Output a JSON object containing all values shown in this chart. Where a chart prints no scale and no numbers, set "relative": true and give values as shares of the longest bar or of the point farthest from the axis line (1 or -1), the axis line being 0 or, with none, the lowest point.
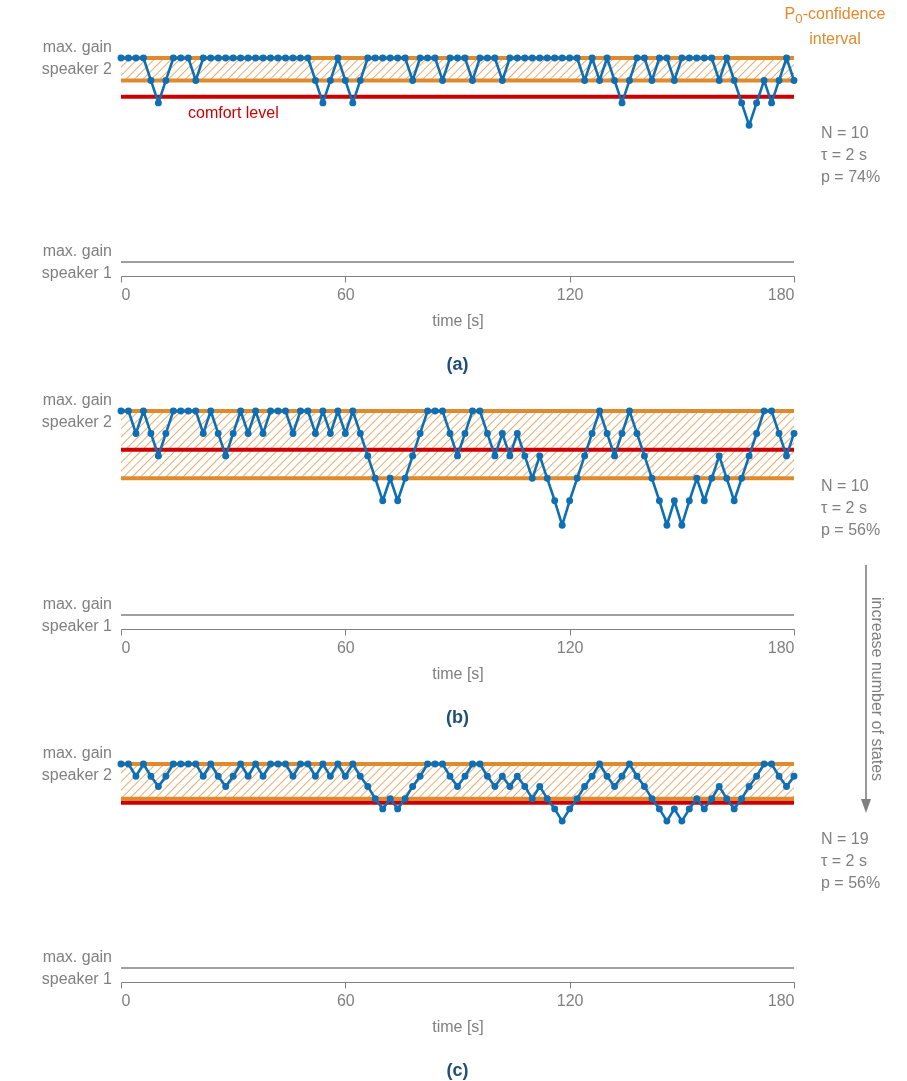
{
  "chart_data": [
    {
      "type": "line",
      "title": "(a)",
      "xlabel": "time [s]",
      "relative": true,
      "x": [
        0,
        2,
        4,
        6,
        8,
        10,
        12,
        14,
        16,
        18,
        20,
        22,
        24,
        26,
        28,
        30,
        32,
        34,
        36,
        38,
        40,
        42,
        44,
        46,
        48,
        50,
        52,
        54,
        56,
        58,
        60,
        62,
        64,
        66,
        68,
        70,
        72,
        74,
        76,
        78,
        80,
        82,
        84,
        86,
        88,
        90,
        92,
        94,
        96,
        98,
        100,
        102,
        104,
        106,
        108,
        110,
        112,
        114,
        116,
        118,
        120,
        122,
        124,
        126,
        128,
        130,
        132,
        134,
        136,
        138,
        140,
        142,
        144,
        146,
        148,
        150,
        152,
        154,
        156,
        158,
        160,
        162,
        164,
        166,
        168,
        170,
        172,
        174,
        176,
        178,
        180
      ],
      "series": [
        {
          "color": "#0f6fb5",
          "values": [
            1,
            1,
            1,
            1,
            0.89,
            0.78,
            0.89,
            1,
            1,
            1,
            0.89,
            1,
            1,
            1,
            1,
            1,
            1,
            1,
            1,
            1,
            1,
            1,
            1,
            1,
            1,
            1,
            0.89,
            0.78,
            0.89,
            1,
            0.89,
            0.78,
            0.89,
            1,
            1,
            1,
            1,
            1,
            1,
            0.89,
            1,
            1,
            1,
            0.89,
            1,
            1,
            1,
            0.89,
            1,
            1,
            1,
            0.89,
            1,
            1,
            1,
            1,
            1,
            1,
            1,
            1,
            1,
            1,
            0.89,
            1,
            0.89,
            1,
            0.89,
            0.78,
            0.89,
            1,
            1,
            0.89,
            1,
            1,
            0.89,
            1,
            1,
            1,
            1,
            1,
            0.89,
            1,
            0.89,
            0.78,
            0.67,
            0.78,
            0.89,
            0.78,
            0.89,
            1,
            0.89
          ]
        }
      ],
      "xlim": [
        0,
        180
      ],
      "xticks": [
        0,
        60,
        120,
        180
      ],
      "marker": "circle",
      "line_style": "solid",
      "ref_lines": [
        {
          "axis": "y",
          "value": 0,
          "color": "#808080"
        },
        {
          "axis": "y",
          "value": 0.89,
          "color": "#e08a2e"
        },
        {
          "axis": "y",
          "value": 1,
          "color": "#e08a2e"
        },
        {
          "axis": "y",
          "value": 0.81,
          "label": "comfort level",
          "color": "#cc0000"
        }
      ],
      "bands": [
        {
          "axis": "y",
          "from": 0.89,
          "to": 1,
          "label": "P$_{0}$-confidence interval",
          "color": "#e08a2e"
        }
      ],
      "annotations": [
        "max. gain speaker 2",
        "max. gain speaker 1",
        "N = 10",
        "τ = 2 s",
        "p = 74%"
      ]
    },
    {
      "type": "line",
      "title": "(b)",
      "xlabel": "time [s]",
      "relative": true,
      "x": [
        0,
        2,
        4,
        6,
        8,
        10,
        12,
        14,
        16,
        18,
        20,
        22,
        24,
        26,
        28,
        30,
        32,
        34,
        36,
        38,
        40,
        42,
        44,
        46,
        48,
        50,
        52,
        54,
        56,
        58,
        60,
        62,
        64,
        66,
        68,
        70,
        72,
        74,
        76,
        78,
        80,
        82,
        84,
        86,
        88,
        90,
        92,
        94,
        96,
        98,
        100,
        102,
        104,
        106,
        108,
        110,
        112,
        114,
        116,
        118,
        120,
        122,
        124,
        126,
        128,
        130,
        132,
        134,
        136,
        138,
        140,
        142,
        144,
        146,
        148,
        150,
        152,
        154,
        156,
        158,
        160,
        162,
        164,
        166,
        168,
        170,
        172,
        174,
        176,
        178,
        180
      ],
      "series": [
        {
          "color": "#0f6fb5",
          "values": [
            1,
            1,
            0.89,
            1,
            0.89,
            0.78,
            0.89,
            1,
            1,
            1,
            1,
            0.89,
            1,
            0.89,
            0.78,
            0.89,
            1,
            0.89,
            1,
            0.89,
            1,
            1,
            1,
            0.89,
            1,
            1,
            0.89,
            1,
            0.89,
            1,
            0.89,
            1,
            0.89,
            0.78,
            0.67,
            0.56,
            0.67,
            0.56,
            0.67,
            0.78,
            0.89,
            1,
            1,
            1,
            0.89,
            0.78,
            0.89,
            1,
            1,
            0.89,
            0.78,
            0.89,
            0.78,
            0.89,
            0.78,
            0.67,
            0.78,
            0.67,
            0.56,
            0.44,
            0.56,
            0.67,
            0.78,
            0.89,
            1,
            0.89,
            0.78,
            0.89,
            1,
            0.89,
            0.78,
            0.67,
            0.56,
            0.44,
            0.56,
            0.44,
            0.56,
            0.67,
            0.56,
            0.67,
            0.78,
            0.67,
            0.56,
            0.67,
            0.78,
            0.89,
            1,
            1,
            0.89,
            0.78,
            0.89
          ]
        }
      ],
      "xlim": [
        0,
        180
      ],
      "xticks": [
        0,
        60,
        120,
        180
      ],
      "marker": "circle",
      "line_style": "solid",
      "ref_lines": [
        {
          "axis": "y",
          "value": 0,
          "color": "#808080"
        },
        {
          "axis": "y",
          "value": 0.67,
          "color": "#e08a2e"
        },
        {
          "axis": "y",
          "value": 1,
          "color": "#e08a2e"
        },
        {
          "axis": "y",
          "value": 0.81,
          "color": "#cc0000"
        }
      ],
      "bands": [
        {
          "axis": "y",
          "from": 0.67,
          "to": 1,
          "color": "#e08a2e"
        }
      ],
      "annotations": [
        "max. gain speaker 2",
        "max. gain speaker 1",
        "N = 10",
        "τ = 2 s",
        "p = 56%",
        "increase number of states"
      ]
    },
    {
      "type": "line",
      "title": "(c)",
      "xlabel": "time [s]",
      "relative": true,
      "x": [
        0,
        2,
        4,
        6,
        8,
        10,
        12,
        14,
        16,
        18,
        20,
        22,
        24,
        26,
        28,
        30,
        32,
        34,
        36,
        38,
        40,
        42,
        44,
        46,
        48,
        50,
        52,
        54,
        56,
        58,
        60,
        62,
        64,
        66,
        68,
        70,
        72,
        74,
        76,
        78,
        80,
        82,
        84,
        86,
        88,
        90,
        92,
        94,
        96,
        98,
        100,
        102,
        104,
        106,
        108,
        110,
        112,
        114,
        116,
        118,
        120,
        122,
        124,
        126,
        128,
        130,
        132,
        134,
        136,
        138,
        140,
        142,
        144,
        146,
        148,
        150,
        152,
        154,
        156,
        158,
        160,
        162,
        164,
        166,
        168,
        170,
        172,
        174,
        176,
        178,
        180
      ],
      "series": [
        {
          "color": "#0f6fb5",
          "values": [
            1,
            1,
            0.94,
            1,
            0.94,
            0.89,
            0.94,
            1,
            1,
            1,
            1,
            0.94,
            1,
            0.94,
            0.89,
            0.94,
            1,
            0.94,
            1,
            0.94,
            1,
            1,
            1,
            0.94,
            1,
            1,
            0.94,
            1,
            0.94,
            1,
            0.94,
            1,
            0.94,
            0.89,
            0.83,
            0.78,
            0.83,
            0.78,
            0.83,
            0.89,
            0.94,
            1,
            1,
            1,
            0.94,
            0.89,
            0.94,
            1,
            1,
            0.94,
            0.89,
            0.94,
            0.89,
            0.94,
            0.89,
            0.83,
            0.89,
            0.83,
            0.78,
            0.72,
            0.78,
            0.83,
            0.89,
            0.94,
            1,
            0.94,
            0.89,
            0.94,
            1,
            0.94,
            0.89,
            0.83,
            0.78,
            0.72,
            0.78,
            0.72,
            0.78,
            0.83,
            0.78,
            0.83,
            0.89,
            0.83,
            0.78,
            0.83,
            0.89,
            0.94,
            1,
            1,
            0.94,
            0.89,
            0.94
          ]
        }
      ],
      "xlim": [
        0,
        180
      ],
      "xticks": [
        0,
        60,
        120,
        180
      ],
      "marker": "circle",
      "line_style": "solid",
      "ref_lines": [
        {
          "axis": "y",
          "value": 0,
          "color": "#808080"
        },
        {
          "axis": "y",
          "value": 0.83,
          "color": "#e08a2e"
        },
        {
          "axis": "y",
          "value": 1,
          "color": "#e08a2e"
        },
        {
          "axis": "y",
          "value": 0.81,
          "color": "#cc0000"
        }
      ],
      "bands": [
        {
          "axis": "y",
          "from": 0.83,
          "to": 1,
          "color": "#e08a2e"
        }
      ],
      "annotations": [
        "max. gain speaker 2",
        "max. gain speaker 1",
        "N = 19",
        "τ = 2 s",
        "p = 56%"
      ]
    }
  ]
}
